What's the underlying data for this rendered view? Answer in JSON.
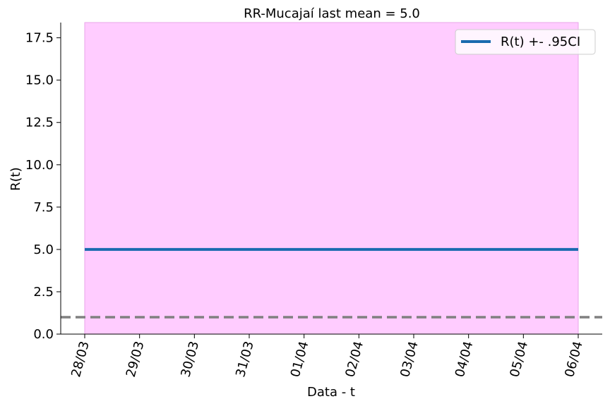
{
  "chart_data": {
    "type": "line",
    "title": "RR-Mucajaí last mean = 5.0",
    "xlabel": "Data - t",
    "ylabel": "R(t)",
    "categories": [
      "28/03",
      "29/03",
      "30/03",
      "31/03",
      "01/04",
      "02/04",
      "03/04",
      "04/04",
      "05/04",
      "06/04"
    ],
    "ylim": [
      0,
      18.4
    ],
    "yticks": [
      "0.0",
      "2.5",
      "5.0",
      "7.5",
      "10.0",
      "12.5",
      "15.0",
      "17.5"
    ],
    "series": [
      {
        "name": "R(t) +- .95CI",
        "values": [
          5.0,
          5.0,
          5.0,
          5.0,
          5.0,
          5.0,
          5.0,
          5.0,
          5.0,
          5.0
        ],
        "ci_lower": [
          0,
          0,
          0,
          0,
          0,
          0,
          0,
          0,
          0,
          0
        ],
        "ci_upper": [
          18.4,
          18.4,
          18.4,
          18.4,
          18.4,
          18.4,
          18.4,
          18.4,
          18.4,
          18.4
        ],
        "color": "#1a6aaf",
        "ci_color": "#ffccff"
      }
    ],
    "reference_line": {
      "y": 1.0,
      "style": "dashed",
      "color": "#808080"
    },
    "legend_position": "top-right",
    "grid": false
  }
}
